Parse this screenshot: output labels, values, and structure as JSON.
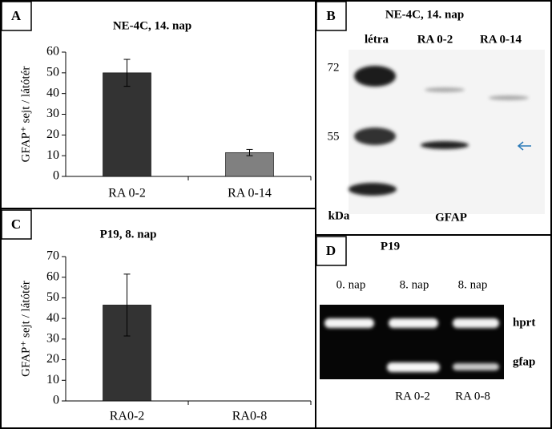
{
  "chart_data": [
    {
      "type": "bar",
      "panel": "A",
      "title": "NE-4C, 14. nap",
      "y_label": "GFAP⁺ sejt / látótér",
      "categories": [
        "RA 0-2",
        "RA 0-14"
      ],
      "values": [
        50,
        11.5
      ],
      "errors": [
        6.5,
        1.5
      ],
      "colors": [
        "#333333",
        "#808080"
      ],
      "ylim": [
        0,
        60
      ],
      "yticks": [
        0,
        10,
        20,
        30,
        40,
        50,
        60
      ]
    },
    {
      "type": "bar",
      "panel": "C",
      "title": "P19, 8. nap",
      "y_label": "GFAP⁺ sejt / látótér",
      "categories": [
        "RA0-2",
        "RA0-8"
      ],
      "values": [
        46.5,
        0
      ],
      "errors": [
        15,
        0
      ],
      "colors": [
        "#333333",
        "#808080"
      ],
      "ylim": [
        0,
        70
      ],
      "yticks": [
        0,
        10,
        20,
        30,
        40,
        50,
        60,
        70
      ]
    }
  ],
  "blot": {
    "panel": "B",
    "title": "NE-4C, 14. nap",
    "lanes": [
      "létra",
      "RA 0-2",
      "RA 0-14"
    ],
    "markers": [
      72,
      55
    ],
    "unit": "kDa",
    "label": "GFAP"
  },
  "gel": {
    "panel": "D",
    "title": "P19",
    "lanes": [
      "0. nap",
      "8. nap",
      "8. nap"
    ],
    "bands": [
      "hprt",
      "gfap"
    ],
    "conditions": [
      "RA 0-2",
      "RA 0-8"
    ]
  }
}
